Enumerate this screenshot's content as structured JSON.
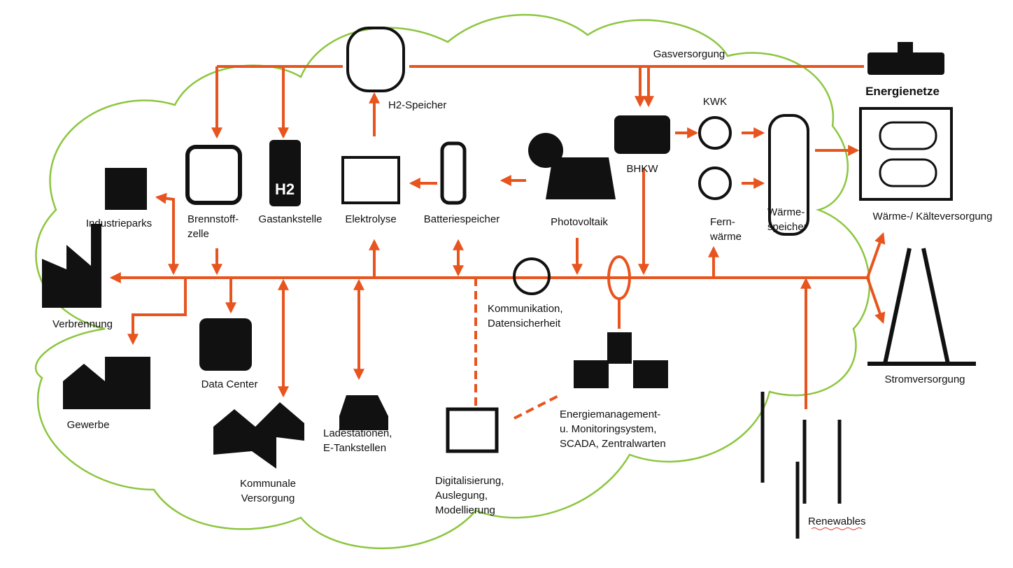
{
  "title": "Energienetze",
  "nodes": [
    {
      "lines": [
        "Gasversorgung"
      ]
    },
    {
      "lines": [
        "KWK"
      ]
    },
    {
      "lines": [
        "H2-Speicher"
      ]
    },
    {
      "lines": [
        "BHKW"
      ]
    },
    {
      "lines": [
        "Industrieparks"
      ]
    },
    {
      "lines": [
        "Brennstoff-",
        "zelle"
      ]
    },
    {
      "lines": [
        "Gastankstelle"
      ],
      "icon_text": "H2"
    },
    {
      "lines": [
        "Elektrolyse"
      ]
    },
    {
      "lines": [
        "Batteriespeicher"
      ]
    },
    {
      "lines": [
        "Photovoltaik"
      ]
    },
    {
      "lines": [
        "Fern-",
        "wärme"
      ]
    },
    {
      "lines": [
        "Wärme-",
        "speicher"
      ]
    },
    {
      "lines": [
        "Wärme-/ Kälteversorgung"
      ]
    },
    {
      "lines": [
        "Verbrennung"
      ]
    },
    {
      "lines": [
        "Kommunikation,",
        "Datensicherheit"
      ]
    },
    {
      "lines": [
        "Gewerbe"
      ]
    },
    {
      "lines": [
        "Data Center"
      ]
    },
    {
      "lines": [
        "Kommunale",
        "Versorgung"
      ]
    },
    {
      "lines": [
        "Ladestationen,",
        "E-Tankstellen"
      ]
    },
    {
      "lines": [
        "Digitalisierung,",
        "Auslegung,",
        "Modellierung"
      ]
    },
    {
      "lines": [
        "Energiemanagement-",
        "u. Monitoringsystem,",
        "SCADA, Zentralwarten"
      ]
    },
    {
      "lines": [
        "Stromversorgung"
      ]
    },
    {
      "lines": [
        "Renewables"
      ]
    }
  ]
}
